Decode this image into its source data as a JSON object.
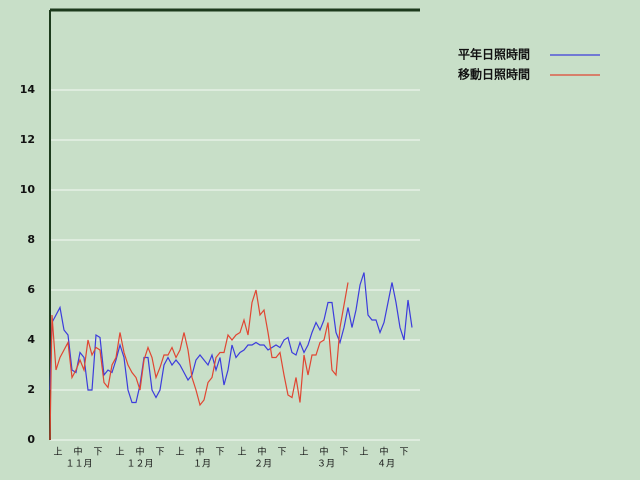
{
  "chart_data": {
    "type": "line",
    "x": [
      0,
      1,
      3,
      5,
      7,
      9,
      11,
      13,
      15,
      17,
      19,
      21,
      23,
      25,
      27,
      29,
      31,
      33,
      35,
      37,
      39,
      41,
      43,
      45,
      47,
      49,
      51,
      53,
      55,
      57,
      59,
      61,
      63,
      65,
      67,
      69,
      71,
      73,
      75,
      77,
      79,
      81,
      83,
      85,
      87,
      89,
      91,
      93,
      95,
      97,
      99,
      101,
      103,
      105,
      107,
      109,
      111,
      113,
      115,
      117,
      119,
      121,
      123,
      125,
      127,
      129,
      131,
      133,
      135,
      137,
      139,
      141,
      143,
      145,
      147,
      149,
      151,
      153,
      155,
      157,
      159,
      161,
      163,
      165,
      167,
      169,
      171,
      173,
      175,
      177,
      179,
      181
    ],
    "series": [
      {
        "name": "平年日照時間",
        "color": "#3c3cdc",
        "values": [
          2.0,
          4.7,
          5.0,
          5.3,
          4.4,
          4.2,
          2.8,
          2.7,
          3.5,
          3.3,
          2.0,
          2.0,
          4.2,
          4.1,
          2.6,
          2.8,
          2.7,
          3.2,
          3.8,
          3.3,
          2.0,
          1.5,
          1.5,
          2.2,
          3.3,
          3.3,
          2.0,
          1.7,
          2.0,
          3.0,
          3.3,
          3.0,
          3.2,
          3.0,
          2.7,
          2.4,
          2.6,
          3.2,
          3.4,
          3.2,
          3.0,
          3.4,
          2.8,
          3.3,
          2.2,
          2.8,
          3.8,
          3.3,
          3.5,
          3.6,
          3.8,
          3.8,
          3.9,
          3.8,
          3.8,
          3.6,
          3.7,
          3.8,
          3.7,
          4.0,
          4.1,
          3.5,
          3.4,
          3.9,
          3.5,
          3.8,
          4.3,
          4.7,
          4.4,
          4.8,
          5.5,
          5.5,
          4.3,
          3.9,
          4.5,
          5.3,
          4.5,
          5.2,
          6.2,
          6.7,
          5.0,
          4.8,
          4.8,
          4.3,
          4.7,
          5.5,
          6.3,
          5.5,
          4.5,
          4.0,
          5.6,
          4.5
        ]
      },
      {
        "name": "移動日照時間",
        "color": "#e04632",
        "values": [
          0,
          5.0,
          2.8,
          3.3,
          3.6,
          3.9,
          2.5,
          2.8,
          3.2,
          2.8,
          4.0,
          3.4,
          3.7,
          3.6,
          2.3,
          2.1,
          3.0,
          3.3,
          4.3,
          3.5,
          3.0,
          2.7,
          2.5,
          2.0,
          3.2,
          3.7,
          3.3,
          2.5,
          2.9,
          3.4,
          3.4,
          3.7,
          3.3,
          3.6,
          4.3,
          3.6,
          2.5,
          2.0,
          1.4,
          1.6,
          2.3,
          2.5,
          3.3,
          3.5,
          3.5,
          4.2,
          4.0,
          4.2,
          4.3,
          4.8,
          4.2,
          5.5,
          6.0,
          5.0,
          5.2,
          4.3,
          3.3,
          3.3,
          3.5,
          2.6,
          1.8,
          1.7,
          2.5,
          1.5,
          3.4,
          2.6,
          3.4,
          3.4,
          3.9,
          4.0,
          4.7,
          2.8,
          2.6,
          4.5,
          5.4,
          6.3,
          null,
          null,
          null,
          null,
          null,
          null,
          null,
          null,
          null,
          null,
          null,
          null,
          null,
          null,
          null,
          null
        ]
      }
    ],
    "xlim": [
      0,
      185
    ],
    "xticks": [
      {
        "value": 4,
        "label": "上"
      },
      {
        "value": 14,
        "label": "中"
      },
      {
        "value": 24,
        "label": "下"
      },
      {
        "value": 35,
        "label": "上"
      },
      {
        "value": 45,
        "label": "中"
      },
      {
        "value": 55,
        "label": "下"
      },
      {
        "value": 65,
        "label": "上"
      },
      {
        "value": 75,
        "label": "中"
      },
      {
        "value": 85,
        "label": "下"
      },
      {
        "value": 96,
        "label": "上"
      },
      {
        "value": 106,
        "label": "中"
      },
      {
        "value": 116,
        "label": "下"
      },
      {
        "value": 127,
        "label": "上"
      },
      {
        "value": 137,
        "label": "中"
      },
      {
        "value": 147,
        "label": "下"
      },
      {
        "value": 157,
        "label": "上"
      },
      {
        "value": 167,
        "label": "中"
      },
      {
        "value": 177,
        "label": "下"
      }
    ],
    "month_ticks": [
      {
        "value": 14.5,
        "label": "１１月"
      },
      {
        "value": 45,
        "label": "１２月"
      },
      {
        "value": 76,
        "label": "１月"
      },
      {
        "value": 106.5,
        "label": "２月"
      },
      {
        "value": 138,
        "label": "３月"
      },
      {
        "value": 168,
        "label": "４月"
      }
    ],
    "ylim": [
      0,
      17.2
    ],
    "yticks": [
      0,
      2,
      4,
      6,
      8,
      10,
      12,
      14
    ],
    "grid": true
  }
}
